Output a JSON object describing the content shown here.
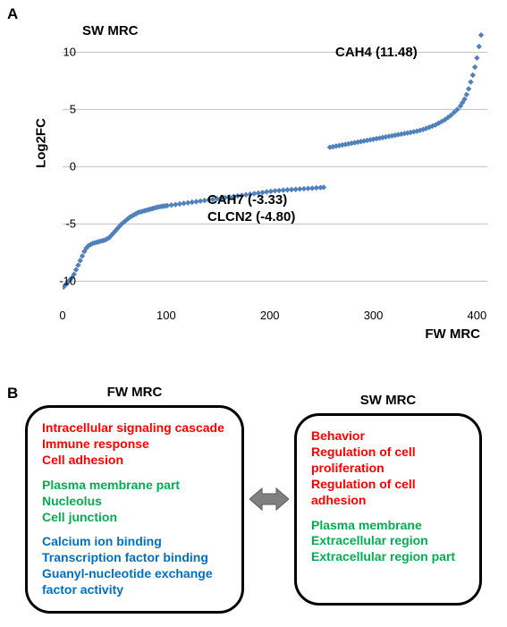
{
  "panelA_label": "A",
  "panelB_label": "B",
  "chart": {
    "type": "scatter",
    "y_label": "Log2FC",
    "xlim": [
      0,
      410
    ],
    "ylim": [
      -12,
      13
    ],
    "xtick_step": 100,
    "ytick_step": 5,
    "xticks": [
      0,
      100,
      200,
      300,
      400
    ],
    "yticks": [
      -10,
      -5,
      0,
      5,
      10
    ],
    "marker_color": "#4f81bd",
    "marker_size": 3.2,
    "gridline_color": "#bfbfbf",
    "background_color": "#ffffff",
    "label_fontsize": 15,
    "tick_fontsize": 13,
    "corner_top_left": "SW MRC",
    "corner_bottom_right": "FW MRC",
    "ann_top": "CAH4 (11.48)",
    "ann_mid1": "CAH7 (-3.33)",
    "ann_mid2": "CLCN2 (-4.80)",
    "series": [
      {
        "x": 1,
        "y": -10.5
      },
      {
        "x": 3,
        "y": -10.3
      },
      {
        "x": 5,
        "y": -10.1
      },
      {
        "x": 7,
        "y": -9.9
      },
      {
        "x": 9,
        "y": -9.7
      },
      {
        "x": 11,
        "y": -9.4
      },
      {
        "x": 13,
        "y": -9.0
      },
      {
        "x": 15,
        "y": -8.6
      },
      {
        "x": 17,
        "y": -8.2
      },
      {
        "x": 19,
        "y": -7.8
      },
      {
        "x": 21,
        "y": -7.4
      },
      {
        "x": 23,
        "y": -7.1
      },
      {
        "x": 25,
        "y": -6.9
      },
      {
        "x": 27,
        "y": -6.8
      },
      {
        "x": 29,
        "y": -6.7
      },
      {
        "x": 31,
        "y": -6.65
      },
      {
        "x": 33,
        "y": -6.6
      },
      {
        "x": 35,
        "y": -6.55
      },
      {
        "x": 37,
        "y": -6.5
      },
      {
        "x": 39,
        "y": -6.45
      },
      {
        "x": 41,
        "y": -6.4
      },
      {
        "x": 43,
        "y": -6.3
      },
      {
        "x": 45,
        "y": -6.2
      },
      {
        "x": 47,
        "y": -6.0
      },
      {
        "x": 49,
        "y": -5.8
      },
      {
        "x": 51,
        "y": -5.6
      },
      {
        "x": 53,
        "y": -5.4
      },
      {
        "x": 55,
        "y": -5.2
      },
      {
        "x": 57,
        "y": -5.0
      },
      {
        "x": 59,
        "y": -4.85
      },
      {
        "x": 61,
        "y": -4.7
      },
      {
        "x": 63,
        "y": -4.55
      },
      {
        "x": 65,
        "y": -4.4
      },
      {
        "x": 67,
        "y": -4.3
      },
      {
        "x": 69,
        "y": -4.2
      },
      {
        "x": 71,
        "y": -4.1
      },
      {
        "x": 73,
        "y": -4.0
      },
      {
        "x": 75,
        "y": -3.95
      },
      {
        "x": 77,
        "y": -3.9
      },
      {
        "x": 79,
        "y": -3.85
      },
      {
        "x": 81,
        "y": -3.8
      },
      {
        "x": 83,
        "y": -3.75
      },
      {
        "x": 85,
        "y": -3.7
      },
      {
        "x": 87,
        "y": -3.65
      },
      {
        "x": 89,
        "y": -3.6
      },
      {
        "x": 91,
        "y": -3.55
      },
      {
        "x": 93,
        "y": -3.5
      },
      {
        "x": 95,
        "y": -3.48
      },
      {
        "x": 97,
        "y": -3.45
      },
      {
        "x": 99,
        "y": -3.42
      },
      {
        "x": 101,
        "y": -3.4
      },
      {
        "x": 105,
        "y": -3.35
      },
      {
        "x": 109,
        "y": -3.3
      },
      {
        "x": 113,
        "y": -3.25
      },
      {
        "x": 117,
        "y": -3.2
      },
      {
        "x": 121,
        "y": -3.15
      },
      {
        "x": 125,
        "y": -3.1
      },
      {
        "x": 129,
        "y": -3.05
      },
      {
        "x": 133,
        "y": -3.0
      },
      {
        "x": 137,
        "y": -2.95
      },
      {
        "x": 141,
        "y": -2.9
      },
      {
        "x": 145,
        "y": -2.85
      },
      {
        "x": 149,
        "y": -2.8
      },
      {
        "x": 153,
        "y": -2.75
      },
      {
        "x": 157,
        "y": -2.7
      },
      {
        "x": 161,
        "y": -2.65
      },
      {
        "x": 165,
        "y": -2.6
      },
      {
        "x": 169,
        "y": -2.55
      },
      {
        "x": 173,
        "y": -2.5
      },
      {
        "x": 177,
        "y": -2.45
      },
      {
        "x": 181,
        "y": -2.4
      },
      {
        "x": 185,
        "y": -2.35
      },
      {
        "x": 189,
        "y": -2.3
      },
      {
        "x": 193,
        "y": -2.25
      },
      {
        "x": 197,
        "y": -2.2
      },
      {
        "x": 201,
        "y": -2.15
      },
      {
        "x": 205,
        "y": -2.1
      },
      {
        "x": 209,
        "y": -2.08
      },
      {
        "x": 213,
        "y": -2.05
      },
      {
        "x": 217,
        "y": -2.02
      },
      {
        "x": 221,
        "y": -2.0
      },
      {
        "x": 225,
        "y": -1.98
      },
      {
        "x": 229,
        "y": -1.95
      },
      {
        "x": 233,
        "y": -1.93
      },
      {
        "x": 237,
        "y": -1.9
      },
      {
        "x": 241,
        "y": -1.88
      },
      {
        "x": 245,
        "y": -1.85
      },
      {
        "x": 249,
        "y": -1.82
      },
      {
        "x": 252,
        "y": -1.8
      },
      {
        "x": 258,
        "y": 1.7
      },
      {
        "x": 261,
        "y": 1.75
      },
      {
        "x": 264,
        "y": 1.8
      },
      {
        "x": 267,
        "y": 1.85
      },
      {
        "x": 270,
        "y": 1.9
      },
      {
        "x": 273,
        "y": 1.95
      },
      {
        "x": 276,
        "y": 2.0
      },
      {
        "x": 279,
        "y": 2.05
      },
      {
        "x": 282,
        "y": 2.1
      },
      {
        "x": 285,
        "y": 2.15
      },
      {
        "x": 288,
        "y": 2.2
      },
      {
        "x": 291,
        "y": 2.25
      },
      {
        "x": 294,
        "y": 2.3
      },
      {
        "x": 297,
        "y": 2.35
      },
      {
        "x": 300,
        "y": 2.4
      },
      {
        "x": 303,
        "y": 2.45
      },
      {
        "x": 306,
        "y": 2.5
      },
      {
        "x": 309,
        "y": 2.55
      },
      {
        "x": 312,
        "y": 2.6
      },
      {
        "x": 315,
        "y": 2.65
      },
      {
        "x": 318,
        "y": 2.7
      },
      {
        "x": 321,
        "y": 2.75
      },
      {
        "x": 324,
        "y": 2.8
      },
      {
        "x": 327,
        "y": 2.85
      },
      {
        "x": 330,
        "y": 2.9
      },
      {
        "x": 333,
        "y": 2.95
      },
      {
        "x": 336,
        "y": 3.0
      },
      {
        "x": 339,
        "y": 3.05
      },
      {
        "x": 342,
        "y": 3.1
      },
      {
        "x": 345,
        "y": 3.18
      },
      {
        "x": 348,
        "y": 3.25
      },
      {
        "x": 351,
        "y": 3.35
      },
      {
        "x": 354,
        "y": 3.45
      },
      {
        "x": 357,
        "y": 3.55
      },
      {
        "x": 360,
        "y": 3.65
      },
      {
        "x": 363,
        "y": 3.8
      },
      {
        "x": 366,
        "y": 3.95
      },
      {
        "x": 369,
        "y": 4.1
      },
      {
        "x": 372,
        "y": 4.3
      },
      {
        "x": 375,
        "y": 4.5
      },
      {
        "x": 378,
        "y": 4.75
      },
      {
        "x": 381,
        "y": 5.0
      },
      {
        "x": 384,
        "y": 5.3
      },
      {
        "x": 386,
        "y": 5.6
      },
      {
        "x": 388,
        "y": 5.9
      },
      {
        "x": 390,
        "y": 6.3
      },
      {
        "x": 392,
        "y": 6.8
      },
      {
        "x": 394,
        "y": 7.4
      },
      {
        "x": 396,
        "y": 8.0
      },
      {
        "x": 398,
        "y": 8.7
      },
      {
        "x": 400,
        "y": 9.5
      },
      {
        "x": 402,
        "y": 10.5
      },
      {
        "x": 404,
        "y": 11.5
      }
    ]
  },
  "panelB": {
    "left_title": "FW MRC",
    "right_title": "SW MRC",
    "arrow_color": "#808080",
    "box_border_color": "#000000",
    "left_box": {
      "red": [
        "Intracellular signaling cascade",
        "Immune response",
        "Cell adhesion"
      ],
      "green": [
        "Plasma membrane part",
        "Nucleolus",
        "Cell junction"
      ],
      "blue": [
        "Calcium ion binding",
        "Transcription factor binding",
        "Guanyl-nucleotide exchange factor activity"
      ]
    },
    "right_box": {
      "red": [
        "Behavior",
        "Regulation of cell proliferation",
        "Regulation of cell adhesion"
      ],
      "green": [
        "Plasma membrane",
        "Extracellular region",
        "Extracellular region part"
      ],
      "blue": []
    }
  }
}
